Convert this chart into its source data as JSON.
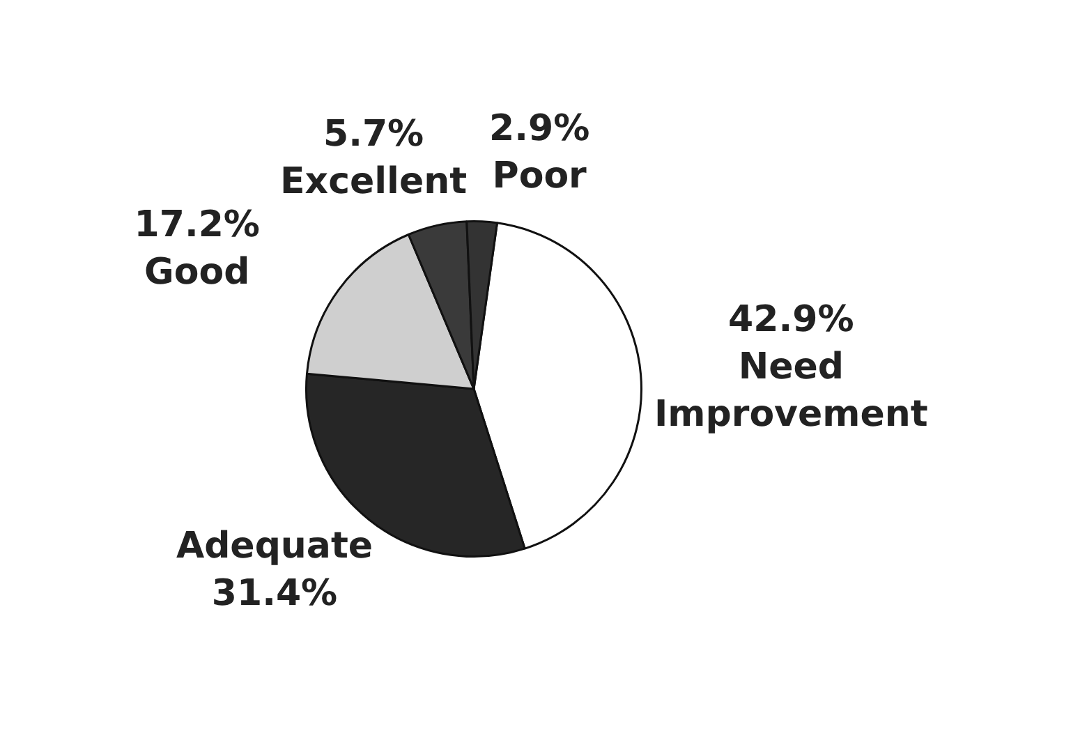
{
  "chart_data": {
    "type": "pie",
    "categories": [
      "Need Improvement",
      "Adequate",
      "Good",
      "Excellent",
      "Poor"
    ],
    "values": [
      42.9,
      31.4,
      17.2,
      5.7,
      2.9
    ],
    "value_labels": [
      "42.9%",
      "31.4%",
      "17.2%",
      "5.7%",
      "2.9%"
    ],
    "colors": [
      "#ffffff",
      "#262626",
      "#cfcfcf",
      "#3a3a3a",
      "#333333"
    ],
    "legend": false
  }
}
